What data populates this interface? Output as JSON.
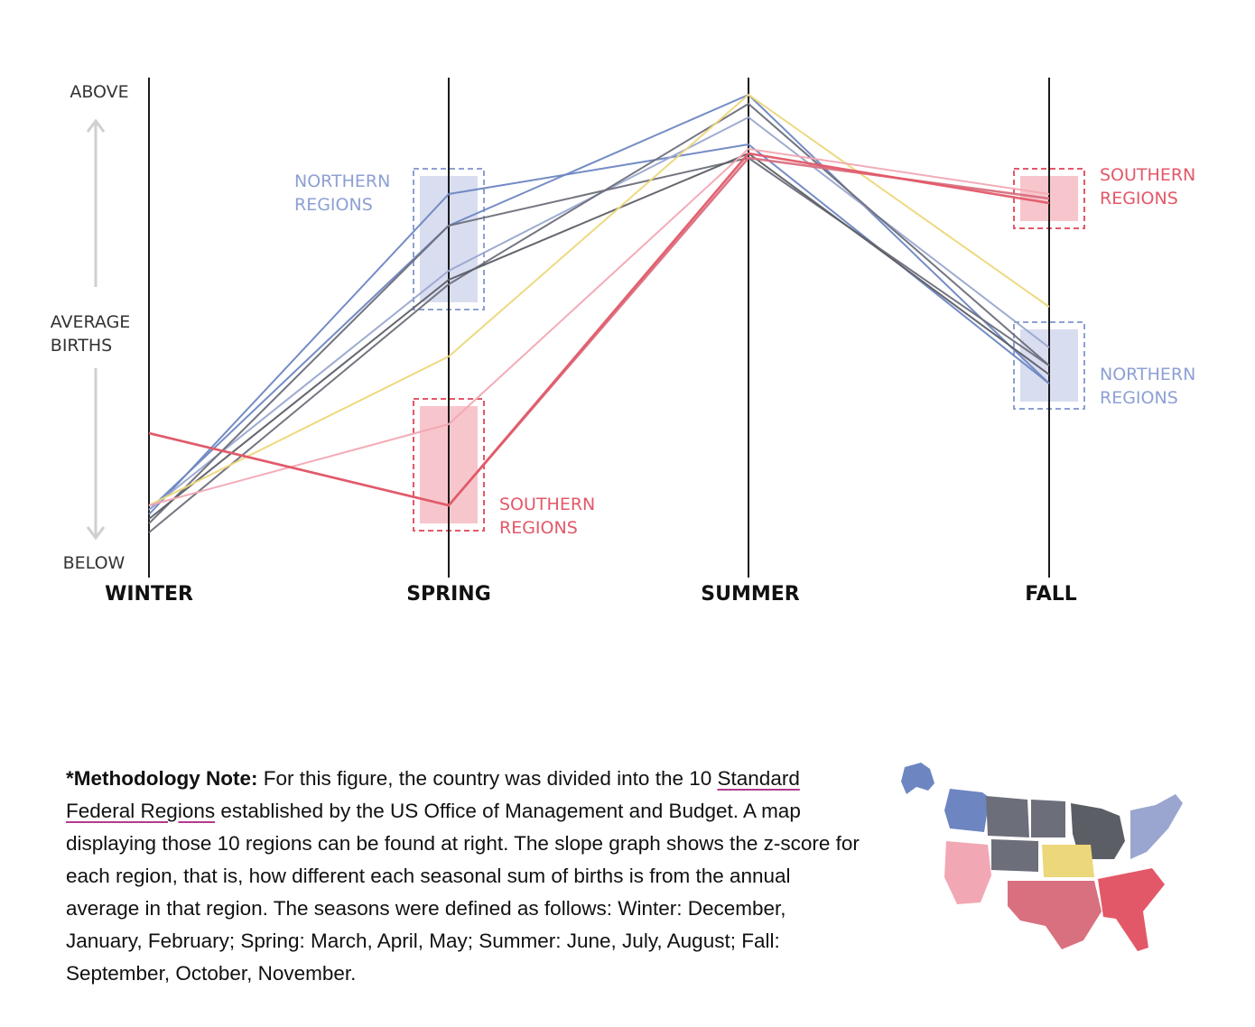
{
  "chart_data": {
    "type": "line",
    "categories": [
      "WINTER",
      "SPRING",
      "SUMMER",
      "FALL"
    ],
    "y_axis": {
      "top_label": "ABOVE",
      "middle_label_lines": [
        "AVERAGE",
        "BIRTHS"
      ],
      "bottom_label": "BELOW",
      "range": [
        0,
        1
      ]
    },
    "series": [
      {
        "color": "#6d86c2",
        "group": "northern",
        "values": [
          0.07,
          0.78,
          0.89,
          0.36
        ]
      },
      {
        "color": "#6d86c2",
        "group": "northern",
        "values": [
          0.08,
          0.71,
          1.0,
          0.36
        ]
      },
      {
        "color": "#9aa6cf",
        "group": "northern",
        "values": [
          0.08,
          0.61,
          0.95,
          0.44
        ]
      },
      {
        "color": "#6c6e7a",
        "group": "northern",
        "values": [
          0.05,
          0.71,
          0.86,
          0.4
        ]
      },
      {
        "color": "#6c6e7a",
        "group": "northern",
        "values": [
          0.03,
          0.58,
          0.98,
          0.4
        ]
      },
      {
        "color": "#5c5e66",
        "group": "northern",
        "values": [
          0.06,
          0.59,
          0.87,
          0.38
        ]
      },
      {
        "color": "#ecd77a",
        "group": "central",
        "values": [
          0.09,
          0.42,
          1.0,
          0.53
        ]
      },
      {
        "color": "#f2a8b4",
        "group": "southern",
        "values": [
          0.09,
          0.27,
          0.88,
          0.78
        ]
      },
      {
        "color": "#d9707f",
        "group": "southern",
        "values": [
          0.25,
          0.09,
          0.86,
          0.77
        ]
      },
      {
        "color": "#e35868",
        "group": "southern",
        "values": [
          0.25,
          0.09,
          0.87,
          0.76
        ]
      }
    ],
    "annotations": {
      "spring_northern": {
        "lines": [
          "NORTHERN",
          "REGIONS"
        ],
        "color": "#8ea0d3"
      },
      "spring_southern": {
        "lines": [
          "SOUTHERN",
          "REGIONS"
        ],
        "color": "#e35868"
      },
      "fall_southern": {
        "lines": [
          "SOUTHERN",
          "REGIONS"
        ],
        "color": "#e35868"
      },
      "fall_northern": {
        "lines": [
          "NORTHERN",
          "REGIONS"
        ],
        "color": "#8ea0d3"
      }
    },
    "band_colors": {
      "northern": "#d9ddf0",
      "southern": "#f7c6cc"
    }
  },
  "note": {
    "bold_lead": "*Methodology Note:",
    "text_before_link": " For this figure, the country was divided into the 10 ",
    "link_text": "Standard Federal Regions",
    "text_after_link": " established by the US Office of Management and Budget. A map displaying those 10 regions can be found at right. The slope graph shows the z-score for each region, that is, how different each seasonal sum of births is from the annual average in that region. The seasons were defined as follows: Winter: December, January, February; Spring: March, April, May; Summer: June, July, August; Fall: September, October, November."
  },
  "map": {
    "region_colors": [
      "#6d86c2",
      "#6c6e7a",
      "#5c5e66",
      "#9aa6cf",
      "#ecd77a",
      "#f2a8b4",
      "#d9707f",
      "#e35868"
    ]
  }
}
